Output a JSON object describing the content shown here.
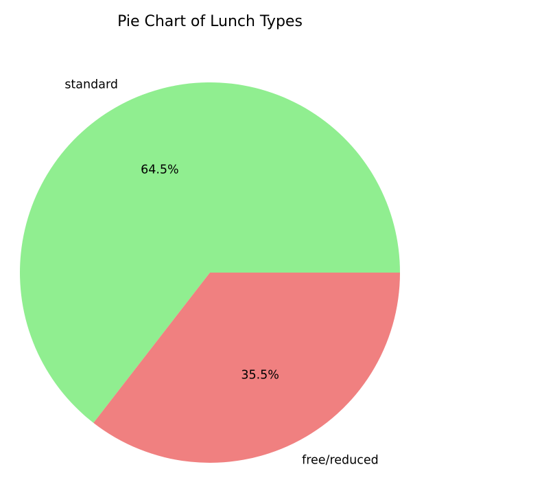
{
  "chart_data": {
    "type": "pie",
    "title": "Pie Chart of Lunch Types",
    "categories": [
      "standard",
      "free/reduced"
    ],
    "values": [
      64.5,
      35.5
    ],
    "percent_labels": [
      "64.5%",
      "35.5%"
    ],
    "colors": [
      "#90ee90",
      "#f08080"
    ],
    "start_angle_deg": 0,
    "direction": "counterclockwise",
    "legend": "none"
  }
}
